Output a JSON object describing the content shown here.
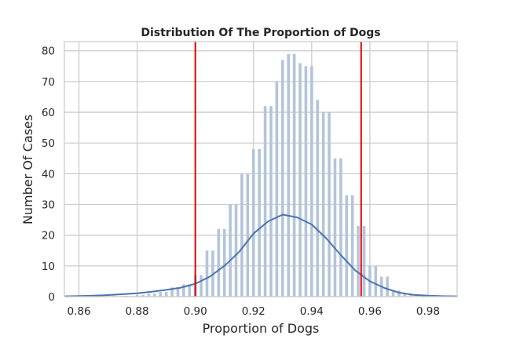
{
  "chart_data": {
    "type": "bar",
    "title": "Distribution Of The Proportion of Dogs",
    "xlabel": "Proportion of Dogs",
    "ylabel": "Number Of Cases",
    "xlim": [
      0.855,
      0.99
    ],
    "ylim": [
      0,
      83
    ],
    "xticks": [
      "0.86",
      "0.88",
      "0.90",
      "0.92",
      "0.94",
      "0.96",
      "0.98"
    ],
    "yticks": [
      "0",
      "10",
      "20",
      "30",
      "40",
      "50",
      "60",
      "70",
      "80"
    ],
    "grid": true,
    "histogram": {
      "x": [
        0.86,
        0.862,
        0.864,
        0.866,
        0.868,
        0.87,
        0.872,
        0.874,
        0.876,
        0.878,
        0.88,
        0.882,
        0.884,
        0.886,
        0.888,
        0.89,
        0.892,
        0.894,
        0.896,
        0.898,
        0.9,
        0.902,
        0.904,
        0.906,
        0.908,
        0.91,
        0.912,
        0.914,
        0.916,
        0.918,
        0.92,
        0.922,
        0.924,
        0.926,
        0.928,
        0.93,
        0.932,
        0.934,
        0.936,
        0.938,
        0.94,
        0.942,
        0.944,
        0.946,
        0.948,
        0.95,
        0.952,
        0.954,
        0.956,
        0.958,
        0.96,
        0.962,
        0.964,
        0.966,
        0.968,
        0.97,
        0.972,
        0.974,
        0.976,
        0.978,
        0.98,
        0.982,
        0.984,
        0.986,
        0.988
      ],
      "counts": [
        0.3,
        0,
        0,
        0,
        0,
        0,
        0,
        0,
        0,
        0,
        0,
        0,
        0,
        0,
        0,
        0,
        0,
        0,
        0,
        0,
        0,
        0,
        0,
        0,
        0,
        0,
        0,
        0,
        0,
        0,
        0,
        0,
        0,
        0,
        0,
        0,
        0,
        0,
        0,
        0,
        0,
        0,
        0,
        0,
        0,
        0,
        0,
        0,
        0,
        0,
        0,
        0,
        0,
        0,
        0,
        0,
        0,
        0,
        0,
        0,
        0,
        0,
        0,
        0,
        0
      ]
    },
    "bars": {
      "x": [
        0.86,
        0.864,
        0.868,
        0.872,
        0.876,
        0.88,
        0.882,
        0.884,
        0.886,
        0.888,
        0.89,
        0.892,
        0.894,
        0.896,
        0.898,
        0.9,
        0.902,
        0.904,
        0.906,
        0.908,
        0.91,
        0.912,
        0.914,
        0.916,
        0.918,
        0.92,
        0.922,
        0.924,
        0.926,
        0.928,
        0.93,
        0.932,
        0.934,
        0.936,
        0.938,
        0.94,
        0.942,
        0.944,
        0.946,
        0.948,
        0.95,
        0.952,
        0.954,
        0.956,
        0.958,
        0.96,
        0.962,
        0.964,
        0.966,
        0.968,
        0.97,
        0.972,
        0.974,
        0.976,
        0.978,
        0.98,
        0.984,
        0.988
      ],
      "values": [
        0.3,
        0.3,
        0.3,
        0.3,
        0.3,
        0.5,
        0.5,
        1,
        1,
        1.5,
        1.5,
        3,
        3,
        4,
        4,
        7,
        7,
        15,
        15,
        22,
        22,
        30,
        30,
        40,
        40,
        48,
        48,
        62,
        62,
        70,
        77,
        79,
        79,
        76,
        75,
        75,
        64,
        60,
        60,
        45,
        45,
        33,
        33,
        23,
        23,
        10,
        10,
        6.5,
        6.5,
        2,
        2,
        1,
        1,
        0.3,
        0.3,
        0.3,
        0.3,
        0.3
      ]
    },
    "kde": {
      "x": [
        0.855,
        0.86,
        0.865,
        0.87,
        0.875,
        0.88,
        0.885,
        0.89,
        0.895,
        0.9,
        0.905,
        0.91,
        0.915,
        0.92,
        0.925,
        0.93,
        0.935,
        0.94,
        0.945,
        0.95,
        0.955,
        0.96,
        0.965,
        0.97,
        0.975,
        0.98,
        0.985,
        0.99
      ],
      "y": [
        0.1,
        0.2,
        0.3,
        0.5,
        0.8,
        1.1,
        1.6,
        2.2,
        2.9,
        4.2,
        6.5,
        10,
        14.5,
        20.5,
        24.5,
        26.7,
        25.8,
        23.5,
        19,
        13.5,
        8.5,
        5,
        2.8,
        1.3,
        0.6,
        0.3,
        0.15,
        0.1
      ]
    },
    "vlines": [
      0.9,
      0.957
    ],
    "colors": {
      "bar": "#b3c5da",
      "kde": "#4c72b0",
      "vline": "#e50000",
      "grid": "#cccccc"
    }
  }
}
